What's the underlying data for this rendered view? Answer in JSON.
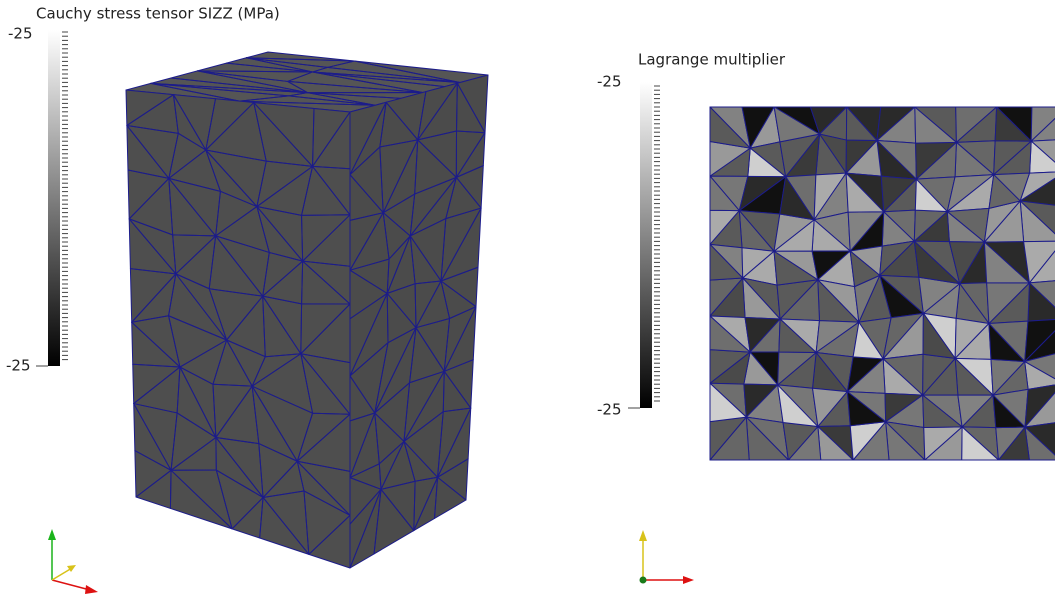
{
  "panels": [
    {
      "colorbar": {
        "title": "Cauchy stress tensor SIZZ (MPa)",
        "labels": [
          "-25",
          "-25"
        ]
      }
    },
    {
      "colorbar": {
        "title": "Lagrange multiplier",
        "labels": [
          "-25",
          "-25"
        ]
      }
    }
  ]
}
